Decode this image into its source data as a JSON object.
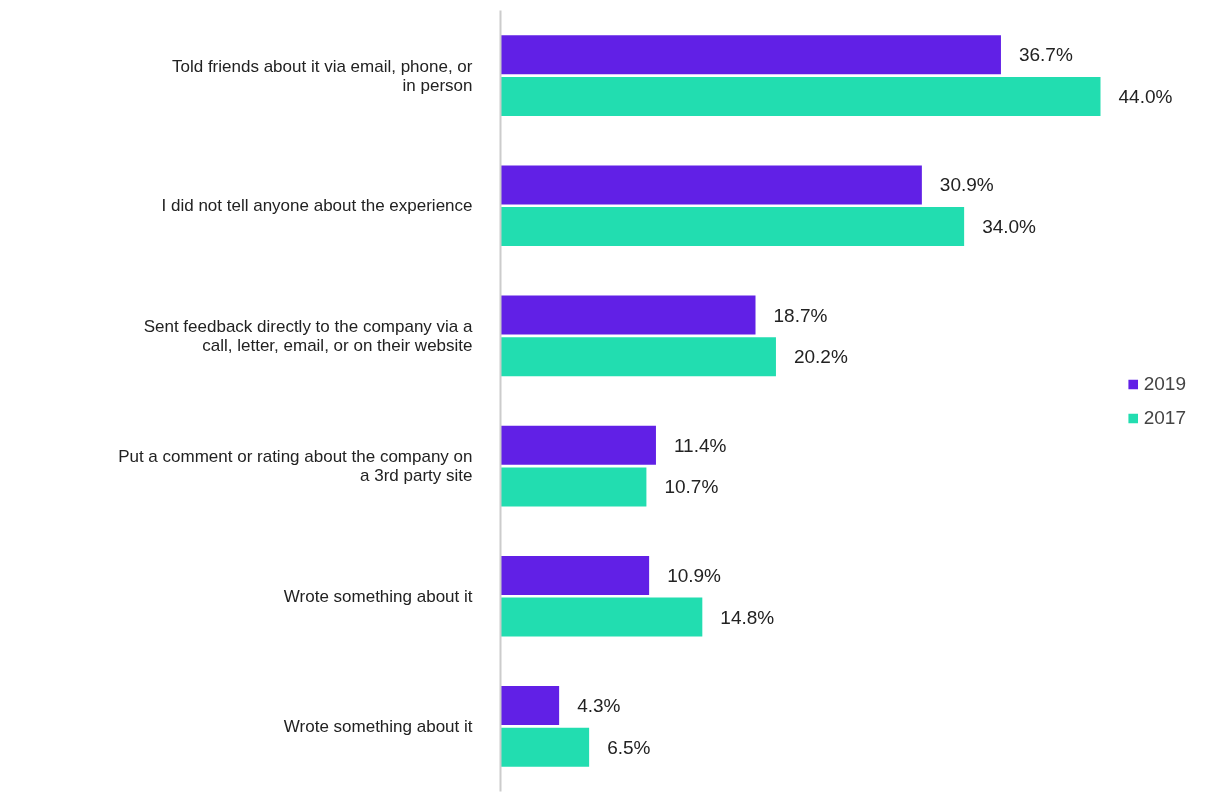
{
  "chart_data": {
    "type": "bar",
    "orientation": "horizontal",
    "categories": [
      "Told friends about it via email, phone, or in person",
      "I did not tell anyone about the experience",
      "Sent feedback directly to the company via a call, letter, email, or on their website",
      "Put a comment or rating about the company on a 3rd party site",
      "Wrote something about it",
      "Wrote something about it"
    ],
    "series": [
      {
        "name": "2019",
        "color": "#6120e6",
        "values": [
          36.7,
          30.9,
          18.7,
          11.4,
          10.9,
          4.3
        ],
        "value_labels": [
          "36.7%",
          "30.9%",
          "18.7%",
          "11.4%",
          "10.9%",
          "4.3%"
        ]
      },
      {
        "name": "2017",
        "color": "#22ddb0",
        "values": [
          44.0,
          34.0,
          20.2,
          10.7,
          14.8,
          6.5
        ],
        "value_labels": [
          "44.0%",
          "34.0%",
          "20.2%",
          "10.7%",
          "14.8%",
          "6.5%"
        ]
      }
    ],
    "tick_labels": "y",
    "grid": false,
    "legend": "right"
  }
}
